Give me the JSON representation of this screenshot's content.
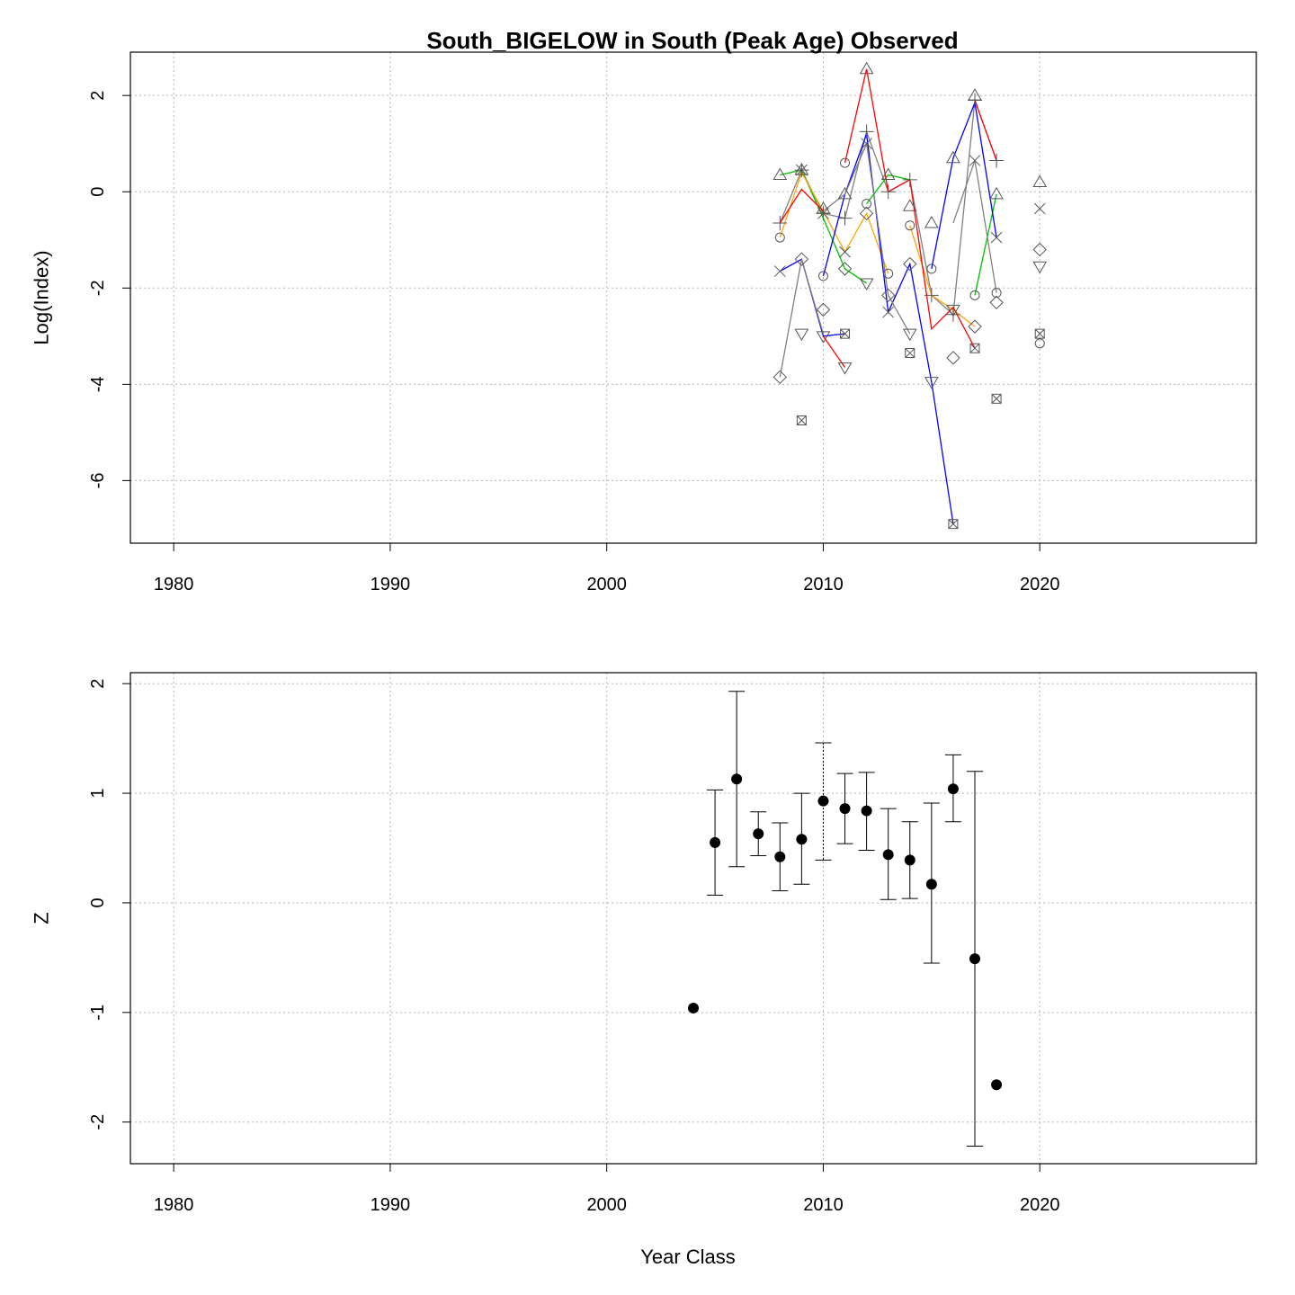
{
  "chart_data": [
    {
      "type": "line",
      "title": "South_BIGELOW in South (Peak Age) Observed",
      "xlabel": "",
      "ylabel": "Log(Index)",
      "xlim": [
        1978,
        2030
      ],
      "ylim": [
        -7.3,
        2.9
      ],
      "xticks": [
        "1980",
        "1990",
        "2000",
        "2010",
        "2020"
      ],
      "yticks": [
        "2",
        "0",
        "-2",
        "-4",
        "-6"
      ],
      "grid": true,
      "series": [
        {
          "color": "#808080",
          "values": [
            [
              2008,
              -0.65
            ],
            [
              2009,
              0.45
            ],
            [
              2010,
              -0.45
            ],
            [
              2011,
              -0.55
            ],
            [
              2012,
              1.25
            ],
            [
              2013,
              0.0
            ],
            [
              2014,
              0.25
            ],
            [
              2015,
              -2.15
            ],
            [
              2016,
              -2.55
            ],
            [
              2017,
              1.9
            ],
            [
              2018,
              0.65
            ]
          ],
          "markers": [
            {
              "x": 2008,
              "y": -0.65,
              "s": "plus"
            },
            {
              "x": 2009,
              "y": 0.45,
              "s": "plus"
            },
            {
              "x": 2010,
              "y": -0.45,
              "s": "plus"
            },
            {
              "x": 2011,
              "y": -0.55,
              "s": "plus"
            },
            {
              "x": 2012,
              "y": 1.25,
              "s": "plus"
            },
            {
              "x": 2013,
              "y": 0.0,
              "s": "plus"
            },
            {
              "x": 2014,
              "y": 0.25,
              "s": "plus"
            },
            {
              "x": 2015,
              "y": -2.15,
              "s": "plus"
            },
            {
              "x": 2016,
              "y": -2.55,
              "s": "plus"
            },
            {
              "x": 2017,
              "y": 1.9,
              "s": "plus"
            },
            {
              "x": 2018,
              "y": 0.65,
              "s": "plus"
            }
          ]
        },
        {
          "color": "#00c000",
          "values": [
            [
              2008,
              0.35
            ],
            [
              2009,
              0.45
            ],
            [
              2010,
              -0.55
            ],
            [
              2011,
              -1.6
            ],
            [
              2012,
              -1.9
            ]
          ]
        },
        {
          "color": "#00c000",
          "values": [
            [
              2012,
              -0.25
            ],
            [
              2013,
              0.35
            ],
            [
              2014,
              0.25
            ]
          ]
        },
        {
          "color": "#00c000",
          "values": [
            [
              2017,
              -2.15
            ],
            [
              2018,
              -0.05
            ]
          ]
        },
        {
          "color": "#ffa500",
          "values": [
            [
              2008,
              -0.95
            ],
            [
              2009,
              0.4
            ],
            [
              2010,
              -0.4
            ],
            [
              2011,
              -1.25
            ],
            [
              2012,
              -0.45
            ],
            [
              2013,
              -1.7
            ]
          ]
        },
        {
          "color": "#ffa500",
          "values": [
            [
              2014,
              -0.7
            ],
            [
              2015,
              -2.15
            ],
            [
              2016,
              -2.45
            ],
            [
              2017,
              -2.8
            ]
          ]
        },
        {
          "color": "#ff0000",
          "values": [
            [
              2008,
              -0.65
            ],
            [
              2009,
              0.05
            ],
            [
              2010,
              -0.4
            ]
          ]
        },
        {
          "color": "#ff0000",
          "values": [
            [
              2011,
              0.6
            ],
            [
              2012,
              2.55
            ],
            [
              2013,
              0.0
            ],
            [
              2014,
              0.25
            ],
            [
              2015,
              -2.85
            ],
            [
              2016,
              -2.4
            ],
            [
              2017,
              -3.25
            ]
          ]
        },
        {
          "color": "#ff0000",
          "values": [
            [
              2017,
              1.9
            ],
            [
              2018,
              0.65
            ]
          ]
        },
        {
          "color": "#ff0000",
          "values": [
            [
              2010,
              -3.0
            ],
            [
              2011,
              -3.65
            ]
          ]
        },
        {
          "color": "#0000ff",
          "values": [
            [
              2008,
              -1.65
            ],
            [
              2009,
              -1.4
            ],
            [
              2010,
              -3.0
            ],
            [
              2011,
              -2.95
            ]
          ]
        },
        {
          "color": "#0000ff",
          "values": [
            [
              2010,
              -1.75
            ],
            [
              2011,
              -0.05
            ],
            [
              2012,
              1.2
            ],
            [
              2013,
              -2.5
            ],
            [
              2014,
              -1.5
            ],
            [
              2015,
              -3.95
            ],
            [
              2016,
              -6.9
            ]
          ]
        },
        {
          "color": "#0000ff",
          "values": [
            [
              2015,
              -1.6
            ],
            [
              2016,
              0.7
            ],
            [
              2017,
              1.85
            ],
            [
              2018,
              -0.95
            ]
          ]
        },
        {
          "color": "#808080",
          "values": [
            [
              2008,
              -3.85
            ],
            [
              2009,
              -1.4
            ],
            [
              2010,
              -2.95
            ]
          ]
        },
        {
          "color": "#808080",
          "values": [
            [
              2010,
              -0.4
            ],
            [
              2011,
              -0.05
            ],
            [
              2012,
              1.0
            ],
            [
              2013,
              -2.15
            ],
            [
              2014,
              -2.95
            ]
          ]
        },
        {
          "color": "#808080",
          "values": [
            [
              2016,
              -0.65
            ],
            [
              2017,
              0.65
            ],
            [
              2018,
              -2.1
            ]
          ]
        }
      ],
      "markers": [
        {
          "x": 2008,
          "y": 0.35,
          "s": "triangle"
        },
        {
          "x": 2009,
          "y": 0.45,
          "s": "triangle"
        },
        {
          "x": 2010,
          "y": -0.35,
          "s": "triangle"
        },
        {
          "x": 2011,
          "y": -0.05,
          "s": "triangle"
        },
        {
          "x": 2012,
          "y": 2.55,
          "s": "triangle"
        },
        {
          "x": 2013,
          "y": 0.35,
          "s": "triangle"
        },
        {
          "x": 2014,
          "y": -0.3,
          "s": "triangle"
        },
        {
          "x": 2015,
          "y": -0.65,
          "s": "triangle"
        },
        {
          "x": 2016,
          "y": 0.7,
          "s": "triangle"
        },
        {
          "x": 2017,
          "y": 2.0,
          "s": "triangle"
        },
        {
          "x": 2018,
          "y": -0.05,
          "s": "triangle"
        },
        {
          "x": 2020,
          "y": 0.2,
          "s": "triangle"
        },
        {
          "x": 2008,
          "y": -0.95,
          "s": "circle"
        },
        {
          "x": 2010,
          "y": -1.75,
          "s": "circle"
        },
        {
          "x": 2011,
          "y": 0.6,
          "s": "circle"
        },
        {
          "x": 2012,
          "y": -0.25,
          "s": "circle"
        },
        {
          "x": 2013,
          "y": -1.7,
          "s": "circle"
        },
        {
          "x": 2014,
          "y": -0.7,
          "s": "circle"
        },
        {
          "x": 2015,
          "y": -1.6,
          "s": "circle"
        },
        {
          "x": 2017,
          "y": -2.15,
          "s": "circle"
        },
        {
          "x": 2018,
          "y": -2.1,
          "s": "circle"
        },
        {
          "x": 2020,
          "y": -3.15,
          "s": "circle"
        },
        {
          "x": 2008,
          "y": -1.65,
          "s": "cross"
        },
        {
          "x": 2009,
          "y": 0.45,
          "s": "cross"
        },
        {
          "x": 2010,
          "y": -0.45,
          "s": "cross"
        },
        {
          "x": 2011,
          "y": -1.25,
          "s": "cross"
        },
        {
          "x": 2012,
          "y": 1.0,
          "s": "cross"
        },
        {
          "x": 2013,
          "y": -2.5,
          "s": "cross"
        },
        {
          "x": 2017,
          "y": 0.65,
          "s": "cross"
        },
        {
          "x": 2018,
          "y": -0.95,
          "s": "cross"
        },
        {
          "x": 2020,
          "y": -0.35,
          "s": "cross"
        },
        {
          "x": 2008,
          "y": -3.85,
          "s": "diamond"
        },
        {
          "x": 2009,
          "y": -1.4,
          "s": "diamond"
        },
        {
          "x": 2010,
          "y": -2.45,
          "s": "diamond"
        },
        {
          "x": 2011,
          "y": -1.6,
          "s": "diamond"
        },
        {
          "x": 2012,
          "y": -0.45,
          "s": "diamond"
        },
        {
          "x": 2013,
          "y": -2.15,
          "s": "diamond"
        },
        {
          "x": 2014,
          "y": -1.5,
          "s": "diamond"
        },
        {
          "x": 2016,
          "y": -3.45,
          "s": "diamond"
        },
        {
          "x": 2017,
          "y": -2.8,
          "s": "diamond"
        },
        {
          "x": 2018,
          "y": -2.3,
          "s": "diamond"
        },
        {
          "x": 2020,
          "y": -1.2,
          "s": "diamond"
        },
        {
          "x": 2009,
          "y": -2.95,
          "s": "down"
        },
        {
          "x": 2010,
          "y": -3.0,
          "s": "down"
        },
        {
          "x": 2011,
          "y": -3.65,
          "s": "down"
        },
        {
          "x": 2012,
          "y": -1.9,
          "s": "down"
        },
        {
          "x": 2014,
          "y": -2.95,
          "s": "down"
        },
        {
          "x": 2015,
          "y": -3.95,
          "s": "down"
        },
        {
          "x": 2016,
          "y": -2.45,
          "s": "down"
        },
        {
          "x": 2020,
          "y": -1.55,
          "s": "down"
        },
        {
          "x": 2009,
          "y": -4.75,
          "s": "boxx"
        },
        {
          "x": 2011,
          "y": -2.95,
          "s": "boxx"
        },
        {
          "x": 2014,
          "y": -3.35,
          "s": "boxx"
        },
        {
          "x": 2016,
          "y": -6.9,
          "s": "boxx"
        },
        {
          "x": 2017,
          "y": -3.25,
          "s": "boxx"
        },
        {
          "x": 2018,
          "y": -4.3,
          "s": "boxx"
        },
        {
          "x": 2020,
          "y": -2.95,
          "s": "boxx"
        }
      ]
    },
    {
      "type": "scatter",
      "title": "",
      "xlabel": "Year Class",
      "ylabel": "Z",
      "xlim": [
        1978,
        2030
      ],
      "ylim": [
        -2.38,
        2.1
      ],
      "xticks": [
        "1980",
        "1990",
        "2000",
        "2010",
        "2020"
      ],
      "yticks": [
        "2",
        "1",
        "0",
        "-1",
        "-2"
      ],
      "grid": true,
      "points": [
        {
          "x": 2004,
          "y": -0.96
        },
        {
          "x": 2005,
          "y": 0.55,
          "lo": 0.07,
          "hi": 1.03
        },
        {
          "x": 2006,
          "y": 1.13,
          "lo": 0.33,
          "hi": 1.93
        },
        {
          "x": 2007,
          "y": 0.63,
          "lo": 0.43,
          "hi": 0.83
        },
        {
          "x": 2008,
          "y": 0.42,
          "lo": 0.11,
          "hi": 0.73
        },
        {
          "x": 2009,
          "y": 0.58,
          "lo": 0.17,
          "hi": 1.0
        },
        {
          "x": 2010,
          "y": 0.93,
          "lo": 0.39,
          "hi": 1.46,
          "dotted": true
        },
        {
          "x": 2011,
          "y": 0.86,
          "lo": 0.54,
          "hi": 1.18
        },
        {
          "x": 2012,
          "y": 0.84,
          "lo": 0.48,
          "hi": 1.19
        },
        {
          "x": 2013,
          "y": 0.44,
          "lo": 0.03,
          "hi": 0.86
        },
        {
          "x": 2014,
          "y": 0.39,
          "lo": 0.04,
          "hi": 0.74
        },
        {
          "x": 2015,
          "y": 0.17,
          "lo": -0.55,
          "hi": 0.91
        },
        {
          "x": 2016,
          "y": 1.04,
          "lo": 0.74,
          "hi": 1.35
        },
        {
          "x": 2017,
          "y": -0.51,
          "lo": -2.22,
          "hi": 1.2
        },
        {
          "x": 2018,
          "y": -1.66
        }
      ]
    }
  ]
}
